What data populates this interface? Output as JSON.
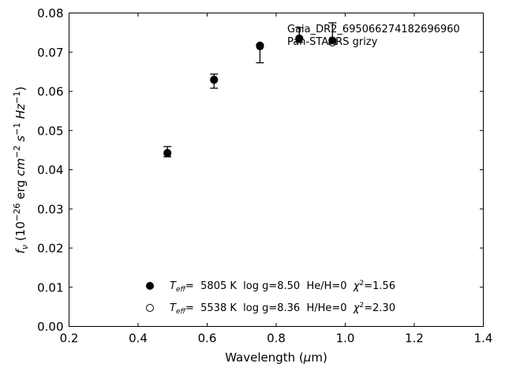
{
  "chart_data": {
    "type": "scatter",
    "xlabel": {
      "pre": "Wavelength (",
      "mu": "μ",
      "post": "m)"
    },
    "ylabel": {
      "f": "f",
      "sub": "ν",
      "a": " (10",
      "exp1": "−26",
      "b": " erg ",
      "cm": "cm",
      "exp2": "−2",
      "c": " ",
      "s": "s",
      "exp3": "−1",
      "d": " ",
      "hz": "Hz",
      "exp4": "−1",
      "e": ")"
    },
    "xlim": [
      0.2,
      1.4
    ],
    "ylim": [
      0.0,
      0.08
    ],
    "xticks": [
      "0.2",
      "0.4",
      "0.6",
      "0.8",
      "1.0",
      "1.2",
      "1.4"
    ],
    "yticks": [
      "0.00",
      "0.01",
      "0.02",
      "0.03",
      "0.04",
      "0.05",
      "0.06",
      "0.07",
      "0.08"
    ],
    "grid": false,
    "annotation": [
      "Gaia_DR2_695066274182696960",
      "Pan-STARRS grizy"
    ],
    "observed": {
      "x": [
        0.485,
        0.62,
        0.753,
        0.867,
        0.963
      ],
      "y": [
        0.0443,
        0.0627,
        0.0714,
        0.0735,
        0.0726
      ],
      "yerr_low": [
        0.001,
        0.0019,
        0.0041,
        0.001,
        0.0006
      ],
      "yerr_high": [
        0.0016,
        0.0017,
        0.0006,
        0.0028,
        0.0049
      ]
    },
    "series": [
      {
        "marker": "filled",
        "x": [
          0.485,
          0.62,
          0.753,
          0.867,
          0.963
        ],
        "y": [
          0.0443,
          0.063,
          0.0715,
          0.0735,
          0.073
        ],
        "label": {
          "t": "T",
          "tsub": "eff",
          "p1": "=  5805 K  log g=8.50  He/H=0  ",
          "chi": "χ",
          "chiexp": "2",
          "p2": "=1.56"
        }
      },
      {
        "marker": "open",
        "x": [
          0.485,
          0.62,
          0.753,
          0.867,
          0.963
        ],
        "y": [
          0.0442,
          0.0629,
          0.0717,
          0.0735,
          0.0725
        ],
        "label": {
          "t": "T",
          "tsub": "eff",
          "p1": "=  5538 K  log g=8.36  H/He=0  ",
          "chi": "χ",
          "chiexp": "2",
          "p2": "=2.30"
        }
      }
    ],
    "legend_position": "lower-center"
  }
}
